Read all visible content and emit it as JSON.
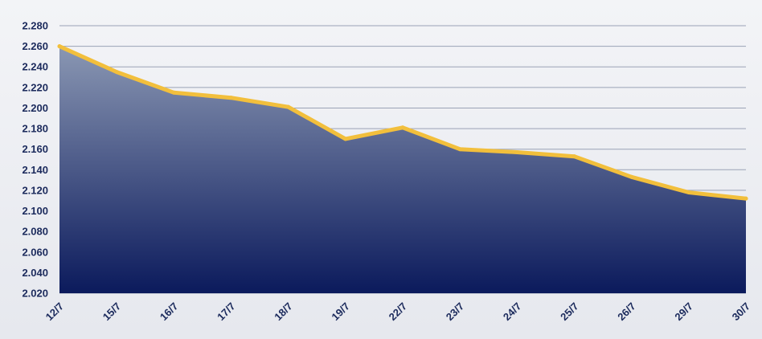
{
  "chart_data": {
    "type": "area",
    "title": "",
    "xlabel": "",
    "ylabel": "",
    "categories": [
      "12/7",
      "15/7",
      "16/7",
      "17/7",
      "18/7",
      "19/7",
      "22/7",
      "23/7",
      "24/7",
      "25/7",
      "26/7",
      "29/7",
      "30/7"
    ],
    "series": [
      {
        "values": [
          2260,
          2235,
          2215,
          2210,
          2201,
          2170,
          2181,
          2160,
          2157,
          2153,
          2133,
          2118,
          2112
        ]
      }
    ],
    "ylim": [
      2020,
      2280
    ],
    "yticks": [
      "2.020",
      "2.040",
      "2.060",
      "2.080",
      "2.100",
      "2.120",
      "2.140",
      "2.160",
      "2.180",
      "2.200",
      "2.220",
      "2.240",
      "2.260",
      "2.280"
    ],
    "grid": true,
    "legend": "none"
  },
  "colors": {
    "line": "#f2bf3c",
    "area_top": "#8a97b3",
    "area_bottom": "#0b1a5c",
    "grid": "#9aa2b6",
    "text": "#1b2a5c"
  }
}
